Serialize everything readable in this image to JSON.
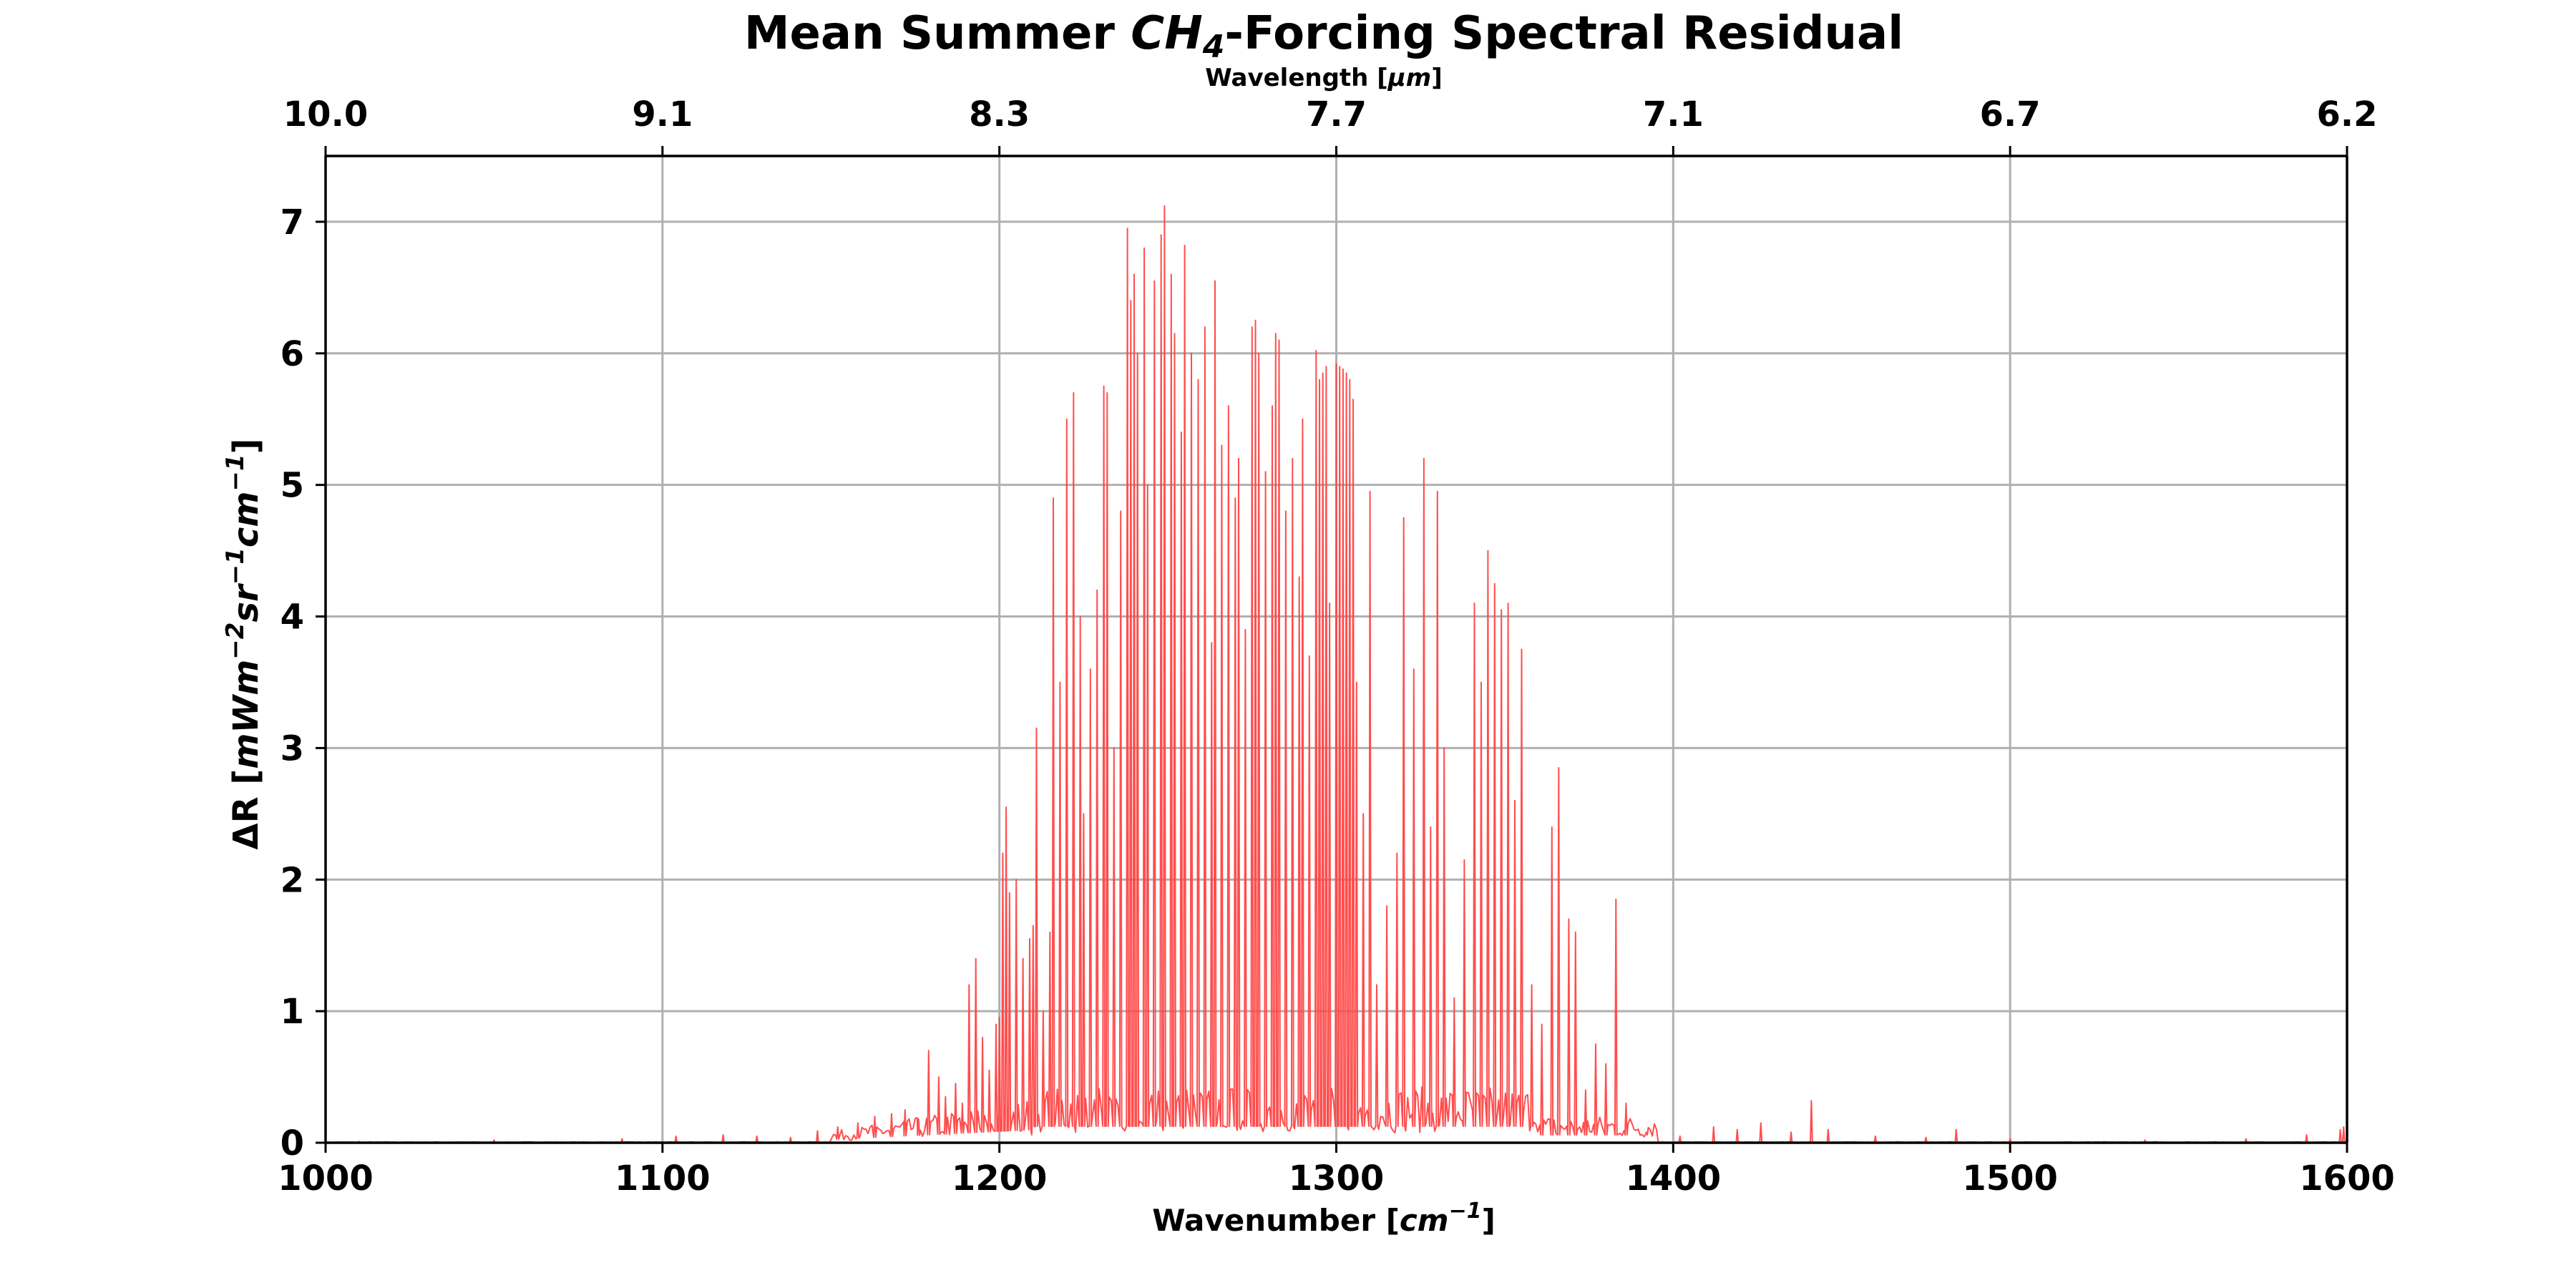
{
  "chart_data": {
    "type": "line",
    "title": {
      "prefix": "Mean Summer ",
      "species_base": "CH",
      "species_sub": "4",
      "suffix": "-Forcing Spectral Residual"
    },
    "xlabel": {
      "text": "Wavenumber [",
      "unit_base": "cm",
      "unit_sup": "−1",
      "close": "]"
    },
    "x2label": {
      "text": "Wavelength [",
      "unit": "μm",
      "close": "]"
    },
    "ylabel": {
      "prefix": "ΔR [",
      "parts": [
        {
          "base": "mWm",
          "sup": "−2"
        },
        {
          "base": "sr",
          "sup": "−1"
        },
        {
          "base": "cm",
          "sup": "−1"
        }
      ],
      "close": "]"
    },
    "xlim": [
      1000,
      1600
    ],
    "ylim": [
      0,
      7.5
    ],
    "x_ticks": [
      "1000",
      "1100",
      "1200",
      "1300",
      "1400",
      "1500",
      "1600"
    ],
    "x2_ticks": [
      "10.0",
      "9.1",
      "8.3",
      "7.7",
      "7.1",
      "6.7",
      "6.2"
    ],
    "y_ticks": [
      "0",
      "1",
      "2",
      "3",
      "4",
      "5",
      "6",
      "7"
    ],
    "grid": true,
    "line_color": "#ff4444",
    "series": [
      {
        "peaks": [
          [
            1010,
            0.01
          ],
          [
            1050,
            0.02
          ],
          [
            1088,
            0.03
          ],
          [
            1104,
            0.05
          ],
          [
            1118,
            0.06
          ],
          [
            1128,
            0.05
          ],
          [
            1138,
            0.04
          ],
          [
            1146,
            0.09
          ],
          [
            1152,
            0.12
          ],
          [
            1158,
            0.15
          ],
          [
            1163,
            0.2
          ],
          [
            1168,
            0.22
          ],
          [
            1172,
            0.25
          ],
          [
            1176,
            0.18
          ],
          [
            1179,
            0.7
          ],
          [
            1182,
            0.5
          ],
          [
            1184,
            0.35
          ],
          [
            1187,
            0.45
          ],
          [
            1189,
            0.3
          ],
          [
            1191,
            1.2
          ],
          [
            1193,
            1.4
          ],
          [
            1195,
            0.8
          ],
          [
            1197,
            0.55
          ],
          [
            1199,
            0.9
          ],
          [
            1200,
            0.95
          ],
          [
            1201,
            2.2
          ],
          [
            1202,
            2.55
          ],
          [
            1203,
            1.9
          ],
          [
            1205,
            2.0
          ],
          [
            1207,
            1.4
          ],
          [
            1209,
            1.55
          ],
          [
            1210,
            1.65
          ],
          [
            1211,
            3.15
          ],
          [
            1213,
            1.0
          ],
          [
            1215,
            1.6
          ],
          [
            1216,
            4.9
          ],
          [
            1218,
            3.5
          ],
          [
            1220,
            5.5
          ],
          [
            1222,
            5.7
          ],
          [
            1224,
            4.0
          ],
          [
            1225,
            2.5
          ],
          [
            1227,
            3.6
          ],
          [
            1229,
            4.2
          ],
          [
            1231,
            5.75
          ],
          [
            1232,
            5.7
          ],
          [
            1234,
            3.0
          ],
          [
            1236,
            4.8
          ],
          [
            1238,
            6.95
          ],
          [
            1239,
            6.4
          ],
          [
            1240,
            6.6
          ],
          [
            1241,
            6.0
          ],
          [
            1243,
            6.8
          ],
          [
            1244,
            5.0
          ],
          [
            1246,
            6.55
          ],
          [
            1248,
            6.9
          ],
          [
            1249,
            7.12
          ],
          [
            1251,
            6.6
          ],
          [
            1252,
            6.15
          ],
          [
            1254,
            5.4
          ],
          [
            1255,
            6.82
          ],
          [
            1257,
            6.0
          ],
          [
            1259,
            5.8
          ],
          [
            1261,
            6.2
          ],
          [
            1263,
            3.8
          ],
          [
            1264,
            6.55
          ],
          [
            1266,
            5.3
          ],
          [
            1268,
            5.6
          ],
          [
            1270,
            4.9
          ],
          [
            1271,
            5.2
          ],
          [
            1273,
            3.9
          ],
          [
            1275,
            6.2
          ],
          [
            1276,
            6.25
          ],
          [
            1277,
            6.0
          ],
          [
            1279,
            5.1
          ],
          [
            1281,
            5.6
          ],
          [
            1282,
            6.15
          ],
          [
            1283,
            6.1
          ],
          [
            1285,
            4.8
          ],
          [
            1287,
            5.2
          ],
          [
            1289,
            4.3
          ],
          [
            1290,
            5.5
          ],
          [
            1292,
            3.7
          ],
          [
            1294,
            6.02
          ],
          [
            1295,
            5.8
          ],
          [
            1296,
            5.85
          ],
          [
            1297,
            5.9
          ],
          [
            1298,
            4.1
          ],
          [
            1300,
            5.92
          ],
          [
            1301,
            5.9
          ],
          [
            1302,
            5.88
          ],
          [
            1303,
            5.85
          ],
          [
            1304,
            5.8
          ],
          [
            1305,
            5.65
          ],
          [
            1306,
            3.5
          ],
          [
            1308,
            2.5
          ],
          [
            1310,
            4.95
          ],
          [
            1312,
            1.2
          ],
          [
            1315,
            1.8
          ],
          [
            1318,
            2.2
          ],
          [
            1320,
            4.75
          ],
          [
            1323,
            3.6
          ],
          [
            1326,
            5.2
          ],
          [
            1328,
            2.4
          ],
          [
            1330,
            4.95
          ],
          [
            1332,
            3.0
          ],
          [
            1335,
            1.1
          ],
          [
            1338,
            2.15
          ],
          [
            1341,
            4.1
          ],
          [
            1343,
            3.5
          ],
          [
            1345,
            4.5
          ],
          [
            1347,
            4.25
          ],
          [
            1349,
            4.05
          ],
          [
            1351,
            4.1
          ],
          [
            1353,
            2.6
          ],
          [
            1355,
            3.75
          ],
          [
            1358,
            1.2
          ],
          [
            1361,
            0.9
          ],
          [
            1364,
            2.4
          ],
          [
            1366,
            2.85
          ],
          [
            1369,
            1.7
          ],
          [
            1371,
            1.6
          ],
          [
            1374,
            0.4
          ],
          [
            1377,
            0.75
          ],
          [
            1380,
            0.6
          ],
          [
            1383,
            1.85
          ],
          [
            1386,
            0.3
          ],
          [
            1392,
            0.08
          ],
          [
            1402,
            0.05
          ],
          [
            1412,
            0.12
          ],
          [
            1419,
            0.1
          ],
          [
            1426,
            0.15
          ],
          [
            1435,
            0.08
          ],
          [
            1441,
            0.32
          ],
          [
            1446,
            0.1
          ],
          [
            1460,
            0.05
          ],
          [
            1475,
            0.04
          ],
          [
            1484,
            0.1
          ],
          [
            1500,
            0.03
          ],
          [
            1540,
            0.02
          ],
          [
            1570,
            0.03
          ],
          [
            1588,
            0.06
          ],
          [
            1598,
            0.1
          ],
          [
            1599,
            0.12
          ]
        ]
      }
    ]
  }
}
